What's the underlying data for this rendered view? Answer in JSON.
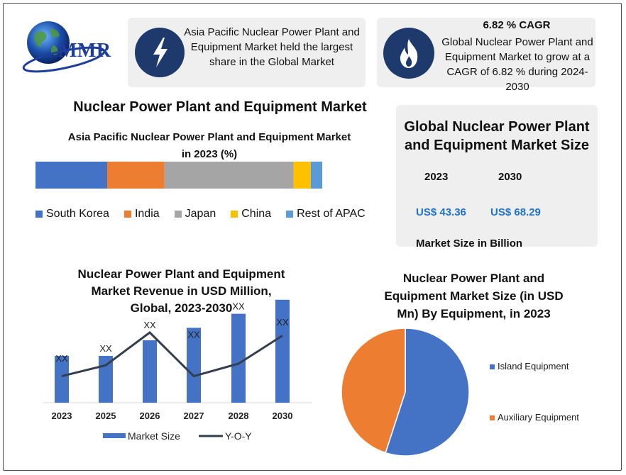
{
  "logo": {
    "text": "MMR"
  },
  "card_left": {
    "text": "Asia Pacific Nuclear Power Plant and Equipment Market held the largest share in the Global Market",
    "icon": "lightning-icon"
  },
  "card_right": {
    "title": "6.82 % CAGR",
    "text": "Global Nuclear Power Plant and Equipment Market to grow at a CAGR of 6.82 % during 2024-2030",
    "icon": "flame-icon"
  },
  "main_title": "Nuclear Power Plant and Equipment Market",
  "market_size": {
    "title": "Global Nuclear Power Plant and Equipment Market Size",
    "year1": "2023",
    "year2": "2030",
    "value1": "US$ 43.36",
    "value2": "US$ 68.29",
    "unit": "Market Size in Billion"
  },
  "colors": {
    "blue": "#4472c4",
    "orange": "#ed7d31",
    "gray": "#a5a5a5",
    "yellow": "#ffc000",
    "lightblue": "#5b9bd5",
    "line": "#333f4f",
    "accent_text": "#1f73c9",
    "icon_bg": "#1e3a6c"
  },
  "chart_data": [
    {
      "type": "bar",
      "orientation": "horizontal-stacked",
      "title": "Asia Pacific Nuclear Power Plant and Equipment Market in 2023 (%)",
      "series": [
        {
          "name": "South Korea",
          "values": [
            25
          ]
        },
        {
          "name": "India",
          "values": [
            20
          ]
        },
        {
          "name": "Japan",
          "values": [
            45
          ]
        },
        {
          "name": "China",
          "values": [
            6
          ]
        },
        {
          "name": "Rest of APAC",
          "values": [
            4
          ]
        }
      ],
      "legend": "bottom"
    },
    {
      "type": "bar",
      "title": "Nuclear Power Plant and Equipment Market Revenue in USD Million, Global, 2023-2030",
      "categories": [
        "2023",
        "2025",
        "2026",
        "2027",
        "2028",
        "2030"
      ],
      "series": [
        {
          "name": "Market Size",
          "type": "bar",
          "values": [
            30,
            30,
            40,
            48,
            57,
            66
          ],
          "labels": [
            "XX",
            "XX",
            "XX",
            "XX",
            "XX",
            "XX"
          ]
        },
        {
          "name": "Y-O-Y",
          "type": "line",
          "values": [
            17,
            24,
            45,
            17,
            25,
            43
          ]
        }
      ],
      "legend": "bottom"
    },
    {
      "type": "pie",
      "title": "Nuclear Power Plant and Equipment Market Size (in USD Mn) By Equipment, in 2023",
      "categories": [
        "Island Equipment",
        "Auxiliary Equipment"
      ],
      "values": [
        55,
        45
      ],
      "legend": "right"
    }
  ]
}
